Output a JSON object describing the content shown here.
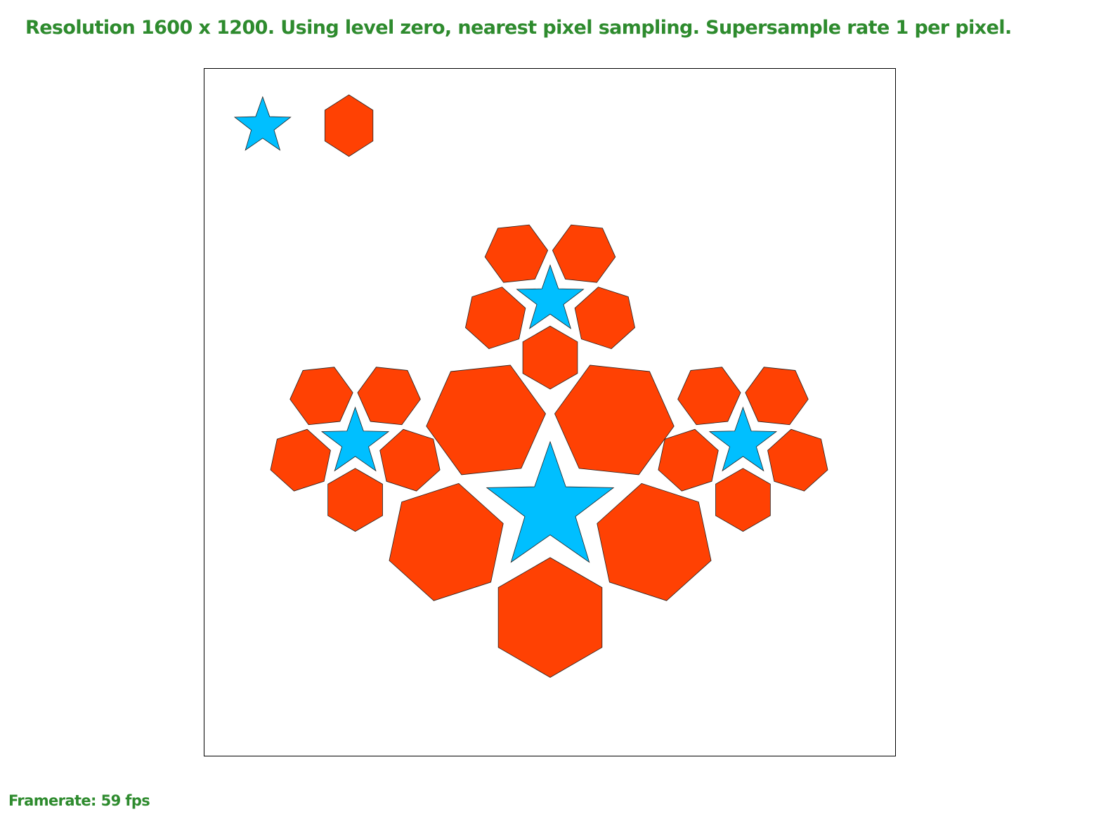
{
  "header": {
    "status_text": "Resolution 1600 x 1200. Using level zero, nearest pixel sampling. Supersample rate 1 per pixel."
  },
  "footer": {
    "framerate_text": "Framerate: 59 fps"
  },
  "colors": {
    "text": "#2e8b2e",
    "hexagon_fill": "#ff4103",
    "star_fill": "#00bfff",
    "outline": "#222222",
    "viewport_border": "#000000"
  },
  "scene": {
    "shape_types": [
      "star-icon",
      "hexagon-icon"
    ]
  }
}
